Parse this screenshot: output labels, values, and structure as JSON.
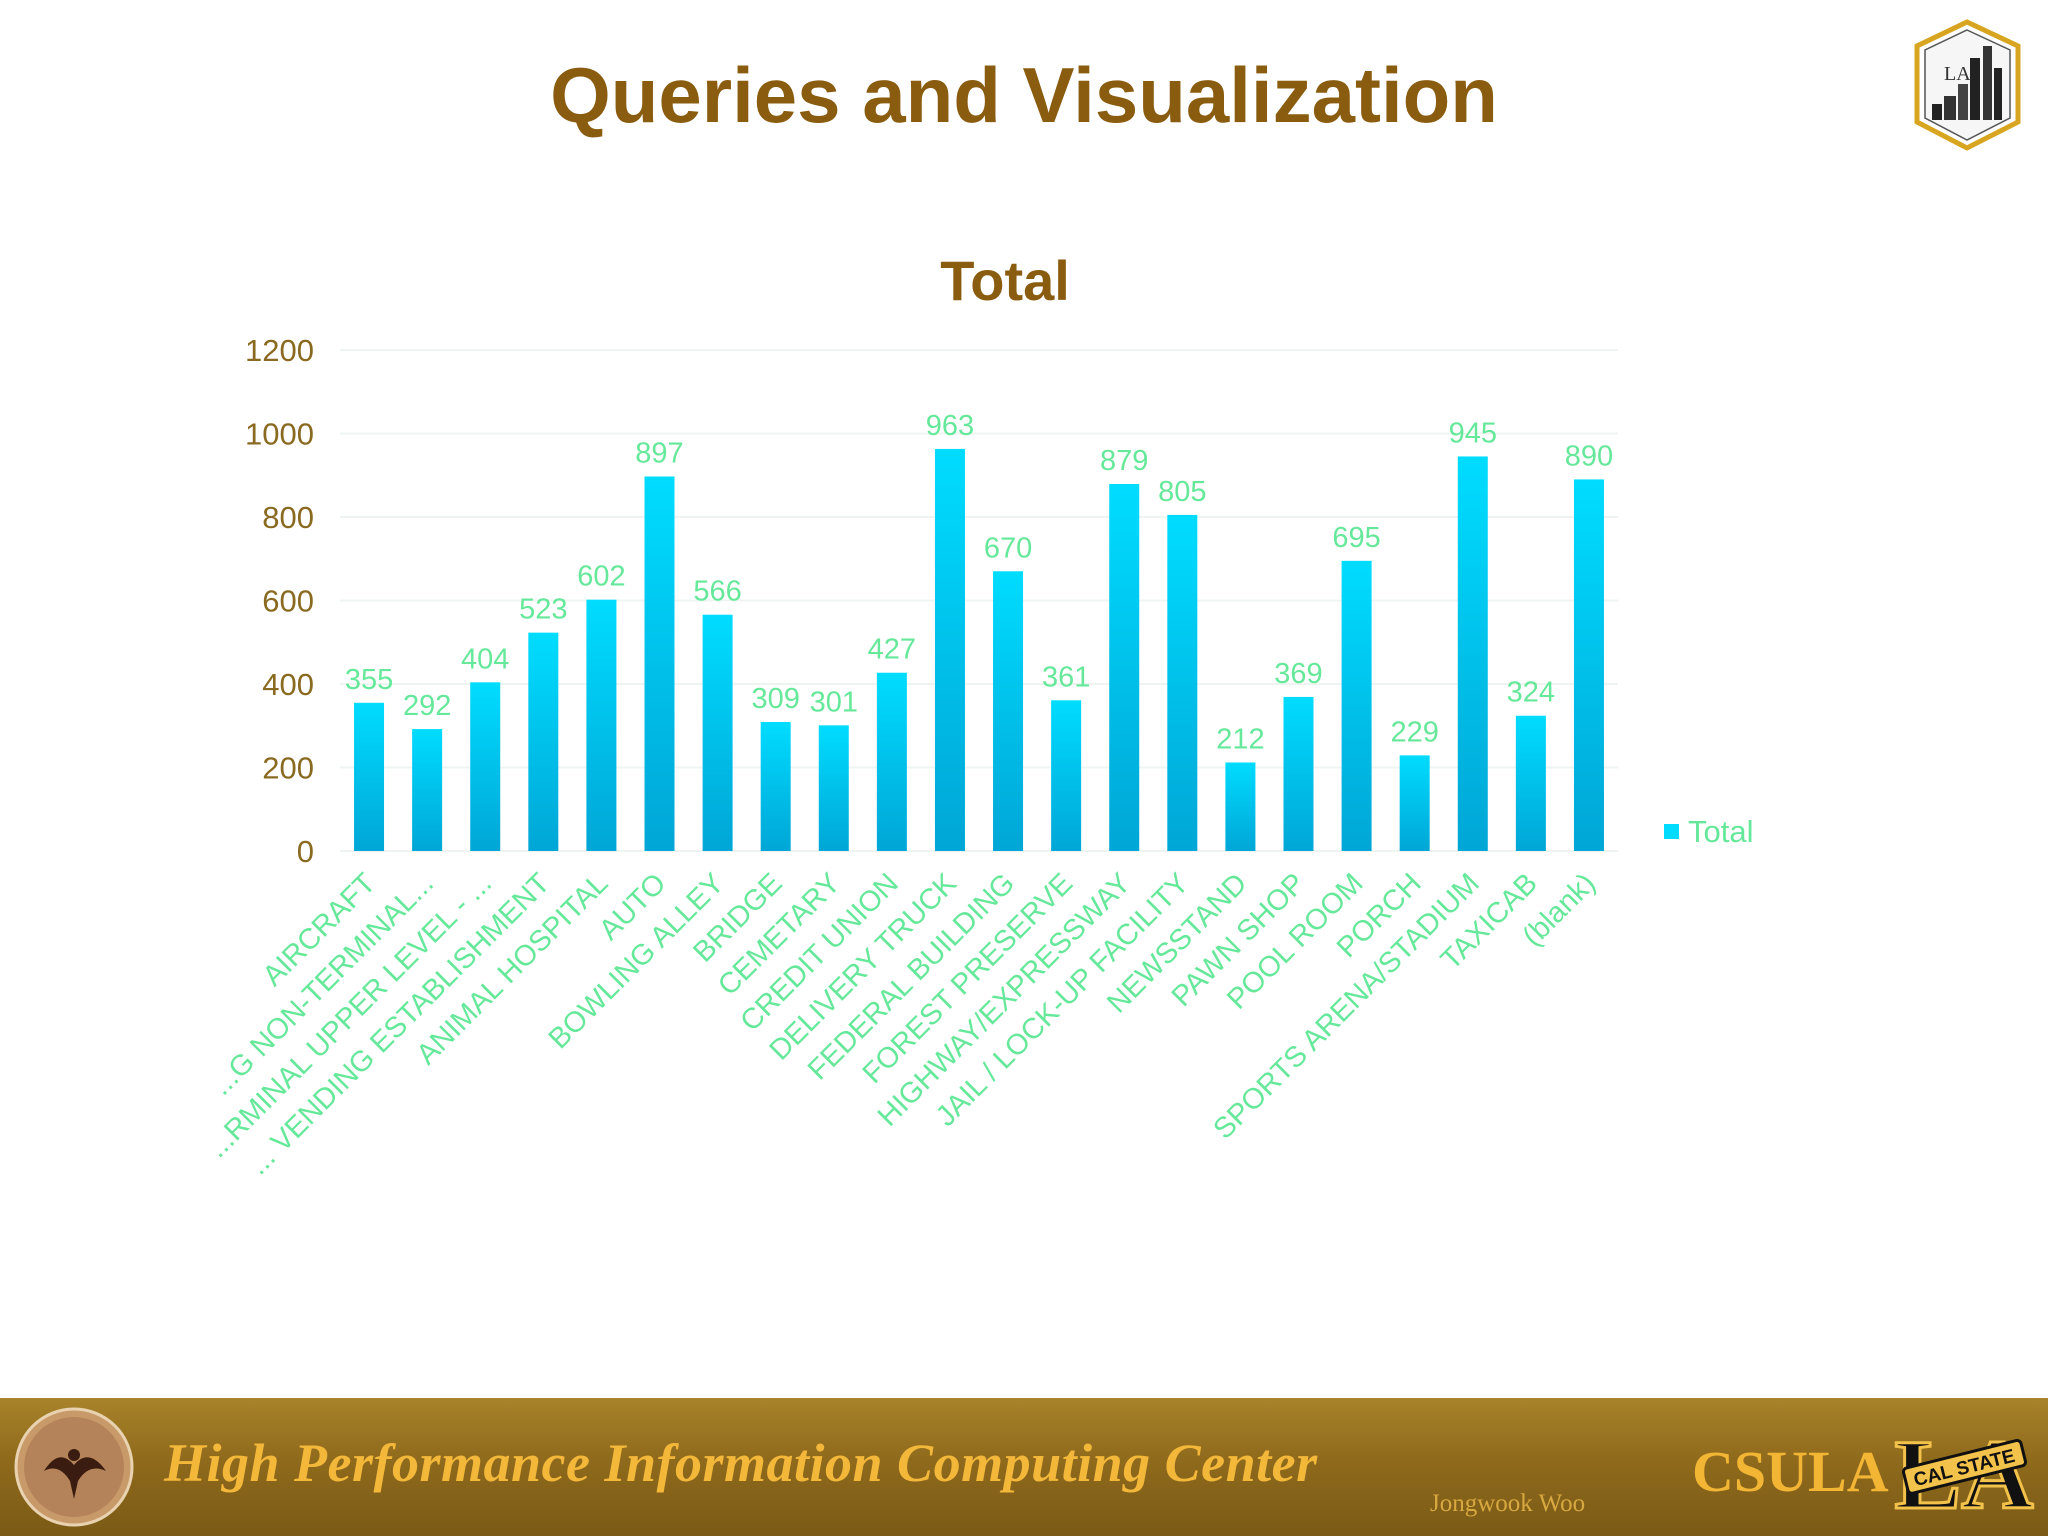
{
  "slide": {
    "title": "Queries and Visualization"
  },
  "footer": {
    "center_name": "High Performance Information Computing Center",
    "author": "Jongwook Woo",
    "org": "CSULA",
    "badge_text": "CAL STATE",
    "badge_letters": "LA",
    "top_logo_text": "LA"
  },
  "colors": {
    "title": "#8a5c10",
    "bar_top": "#00dcff",
    "bar_bottom": "#00a6d6",
    "data_label": "#66e89a",
    "category_label": "#66e89a",
    "axis_label": "#8a6a20",
    "gridline": "#eef4f0"
  },
  "chart_data": {
    "type": "bar",
    "title": "Total",
    "categories": [
      "AIRCRAFT",
      "...G NON-TERMINAL...",
      "...RMINAL UPPER LEVEL - ...",
      "... VENDING ESTABLISHMENT",
      "ANIMAL HOSPITAL",
      "AUTO",
      "BOWLING ALLEY",
      "BRIDGE",
      "CEMETARY",
      "CREDIT UNION",
      "DELIVERY TRUCK",
      "FEDERAL BUILDING",
      "FOREST PRESERVE",
      "HIGHWAY/EXPRESSWAY",
      "JAIL / LOCK-UP FACILITY",
      "NEWSSTAND",
      "PAWN SHOP",
      "POOL ROOM",
      "PORCH",
      "SPORTS ARENA/STADIUM",
      "TAXICAB",
      "(blank)"
    ],
    "series": [
      {
        "name": "Total",
        "values": [
          355,
          292,
          404,
          523,
          602,
          897,
          566,
          309,
          301,
          427,
          963,
          670,
          361,
          879,
          805,
          212,
          369,
          695,
          229,
          945,
          324,
          890
        ]
      }
    ],
    "yticks": [
      0,
      200,
      400,
      600,
      800,
      1000,
      1200
    ],
    "ylim": [
      0,
      1200
    ],
    "grid": true,
    "legend_position": "right",
    "data_labels": true
  }
}
